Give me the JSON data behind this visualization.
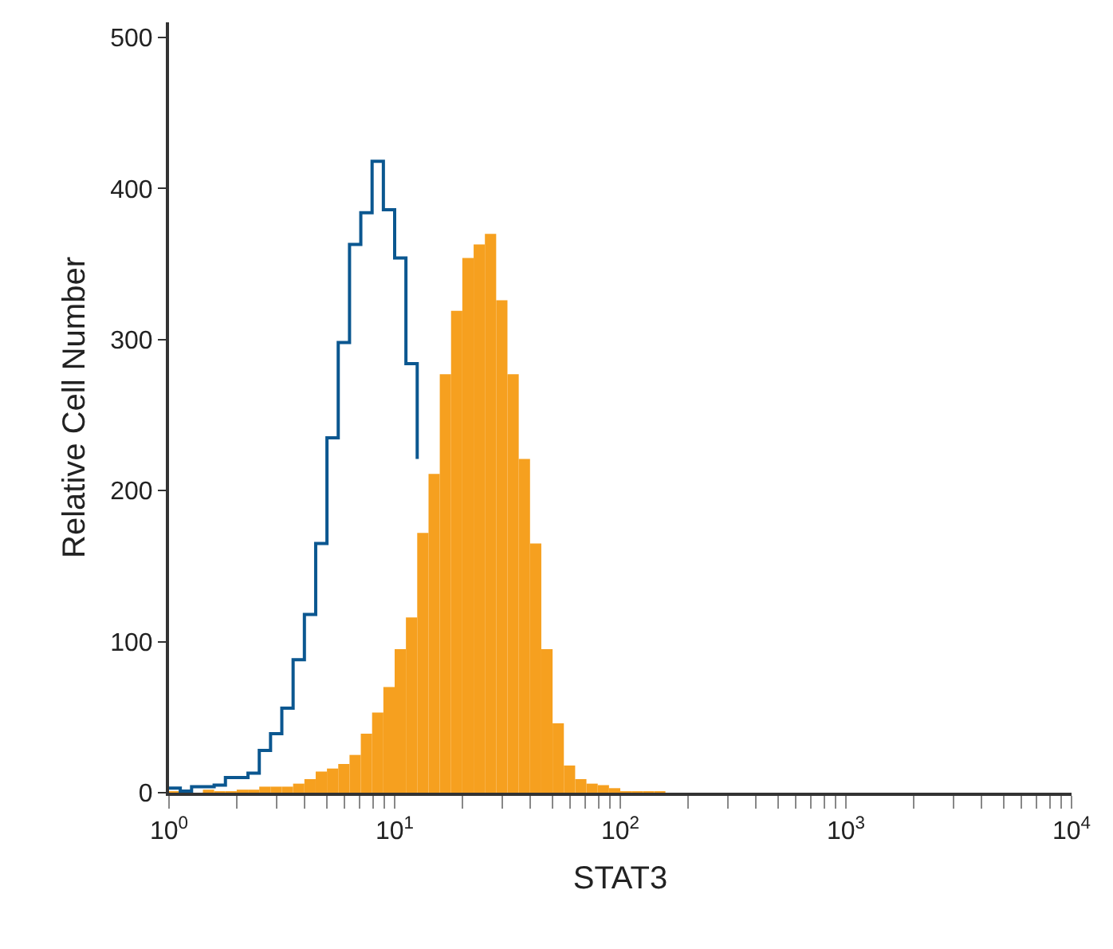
{
  "chart_data": {
    "type": "histogram",
    "xlabel": "STAT3",
    "ylabel": "Relative Cell Number",
    "bins": [
      1,
      1.122,
      1.259,
      1.413,
      1.585,
      1.778,
      1.995,
      2.239,
      2.512,
      2.818,
      3.162,
      3.548,
      3.981,
      4.467,
      5.012,
      5.623,
      6.31,
      7.079,
      7.943,
      8.913,
      10,
      11.22,
      12.59,
      14.13,
      15.85,
      17.78,
      19.95,
      22.39,
      25.12,
      28.18,
      31.62,
      35.48,
      39.81,
      44.67,
      50.12,
      56.23,
      63.1,
      70.79,
      79.43,
      89.13,
      100,
      112.2,
      125.9,
      141.3,
      158.5,
      177.8,
      199.5,
      223.9,
      251.2
    ],
    "series": [
      {
        "color": "#f6a01f",
        "values": [
          1,
          0,
          0,
          2,
          1,
          1,
          2,
          2,
          4,
          4,
          4,
          6,
          9,
          14,
          16,
          19,
          25,
          39,
          53,
          70,
          95,
          116,
          172,
          211,
          277,
          319,
          354,
          363,
          370,
          326,
          277,
          221,
          165,
          95,
          46,
          18,
          9,
          6,
          5,
          3,
          1,
          1,
          1,
          1,
          0,
          0,
          0,
          0
        ]
      },
      {
        "type": "step",
        "color": "#0b5790",
        "x": [
          1,
          1.122,
          1.259,
          1.413,
          1.585,
          1.778,
          1.995,
          2.239,
          2.512,
          2.818,
          3.162,
          3.548,
          3.981,
          4.467,
          5.012,
          5.623,
          6.31,
          7.079,
          7.943,
          8.913,
          10,
          11.22,
          12.59
        ],
        "values": [
          3,
          1,
          4,
          4,
          5,
          10,
          10,
          13,
          28,
          39,
          56,
          88,
          118,
          165,
          235,
          298,
          363,
          384,
          418,
          386,
          354,
          284,
          221
        ]
      }
    ],
    "log": "x",
    "xlim": [
      1,
      10000
    ],
    "xticks": [
      {
        "value": 1,
        "label": "10$^{0}$"
      },
      {
        "value": 2,
        "label": null
      },
      {
        "value": 3,
        "label": null
      },
      {
        "value": 4,
        "label": null
      },
      {
        "value": 5,
        "label": null
      },
      {
        "value": 6,
        "label": null
      },
      {
        "value": 7,
        "label": null
      },
      {
        "value": 8,
        "label": null
      },
      {
        "value": 9,
        "label": null
      },
      {
        "value": 10,
        "label": "10$^{1}$"
      },
      {
        "value": 20,
        "label": null
      },
      {
        "value": 30,
        "label": null
      },
      {
        "value": 40,
        "label": null
      },
      {
        "value": 50,
        "label": null
      },
      {
        "value": 60,
        "label": null
      },
      {
        "value": 70,
        "label": null
      },
      {
        "value": 80,
        "label": null
      },
      {
        "value": 90,
        "label": null
      },
      {
        "value": 100,
        "label": "10$^{2}$"
      },
      {
        "value": 200,
        "label": null
      },
      {
        "value": 300,
        "label": null
      },
      {
        "value": 400,
        "label": null
      },
      {
        "value": 500,
        "label": null
      },
      {
        "value": 600,
        "label": null
      },
      {
        "value": 700,
        "label": null
      },
      {
        "value": 800,
        "label": null
      },
      {
        "value": 900,
        "label": null
      },
      {
        "value": 1000,
        "label": "10$^{3}$"
      },
      {
        "value": 2000,
        "label": null
      },
      {
        "value": 3000,
        "label": null
      },
      {
        "value": 4000,
        "label": null
      },
      {
        "value": 5000,
        "label": null
      },
      {
        "value": 6000,
        "label": null
      },
      {
        "value": 7000,
        "label": null
      },
      {
        "value": 8000,
        "label": null
      },
      {
        "value": 9000,
        "label": null
      },
      {
        "value": 10000,
        "label": "10$^{4}$"
      }
    ],
    "ylim": [
      0,
      510
    ],
    "yticks": [
      0,
      100,
      200,
      300,
      400,
      500
    ]
  }
}
